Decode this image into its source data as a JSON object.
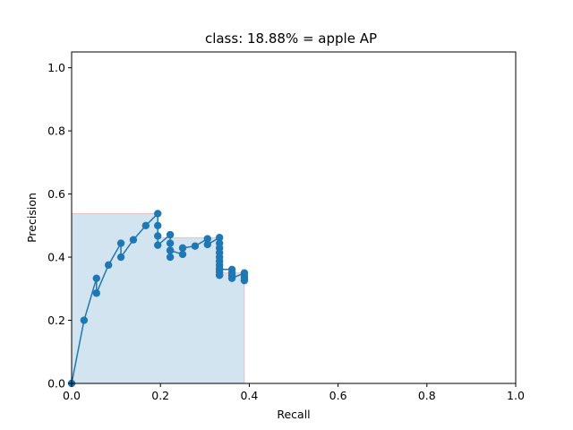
{
  "chart_data": {
    "type": "line",
    "title": "class: 18.88% = apple AP",
    "xlabel": "Recall",
    "ylabel": "Precision",
    "xlim": [
      0,
      1
    ],
    "ylim": [
      0,
      1.05
    ],
    "xticks": [
      "0.0",
      "0.2",
      "0.4",
      "0.6",
      "0.8",
      "1.0"
    ],
    "yticks": [
      "0.0",
      "0.2",
      "0.4",
      "0.6",
      "0.8",
      "1.0"
    ],
    "grid": false,
    "line_color": "#1f77b4",
    "fill_color": "#1f77b4",
    "edge_color": "#ff0000",
    "series": [
      {
        "marker": "circle",
        "x": [
          0.0,
          0.028,
          0.056,
          0.056,
          0.083,
          0.111,
          0.111,
          0.139,
          0.167,
          0.194,
          0.194,
          0.194,
          0.194,
          0.222,
          0.222,
          0.222,
          0.222,
          0.222,
          0.25,
          0.25,
          0.278,
          0.306,
          0.306,
          0.333,
          0.333,
          0.333,
          0.333,
          0.333,
          0.333,
          0.333,
          0.333,
          0.333,
          0.333,
          0.333,
          0.333,
          0.361,
          0.361,
          0.361,
          0.361,
          0.389,
          0.389,
          0.389,
          0.389
        ],
        "y": [
          0.0,
          0.2,
          0.333,
          0.286,
          0.375,
          0.444,
          0.4,
          0.455,
          0.5,
          0.538,
          0.5,
          0.467,
          0.438,
          0.471,
          0.444,
          0.421,
          0.4,
          0.421,
          0.409,
          0.429,
          0.435,
          0.458,
          0.44,
          0.462,
          0.444,
          0.429,
          0.414,
          0.4,
          0.387,
          0.375,
          0.364,
          0.353,
          0.343,
          0.343,
          0.361,
          0.361,
          0.351,
          0.342,
          0.333,
          0.35,
          0.341,
          0.333,
          0.326
        ]
      }
    ],
    "envelope": {
      "x": [
        0.0,
        0.0,
        0.194,
        0.194,
        0.333,
        0.333,
        0.389,
        0.389,
        0.389
      ],
      "y": [
        0.0,
        0.538,
        0.538,
        0.462,
        0.462,
        0.35,
        0.35,
        0.0,
        0.0
      ]
    }
  }
}
